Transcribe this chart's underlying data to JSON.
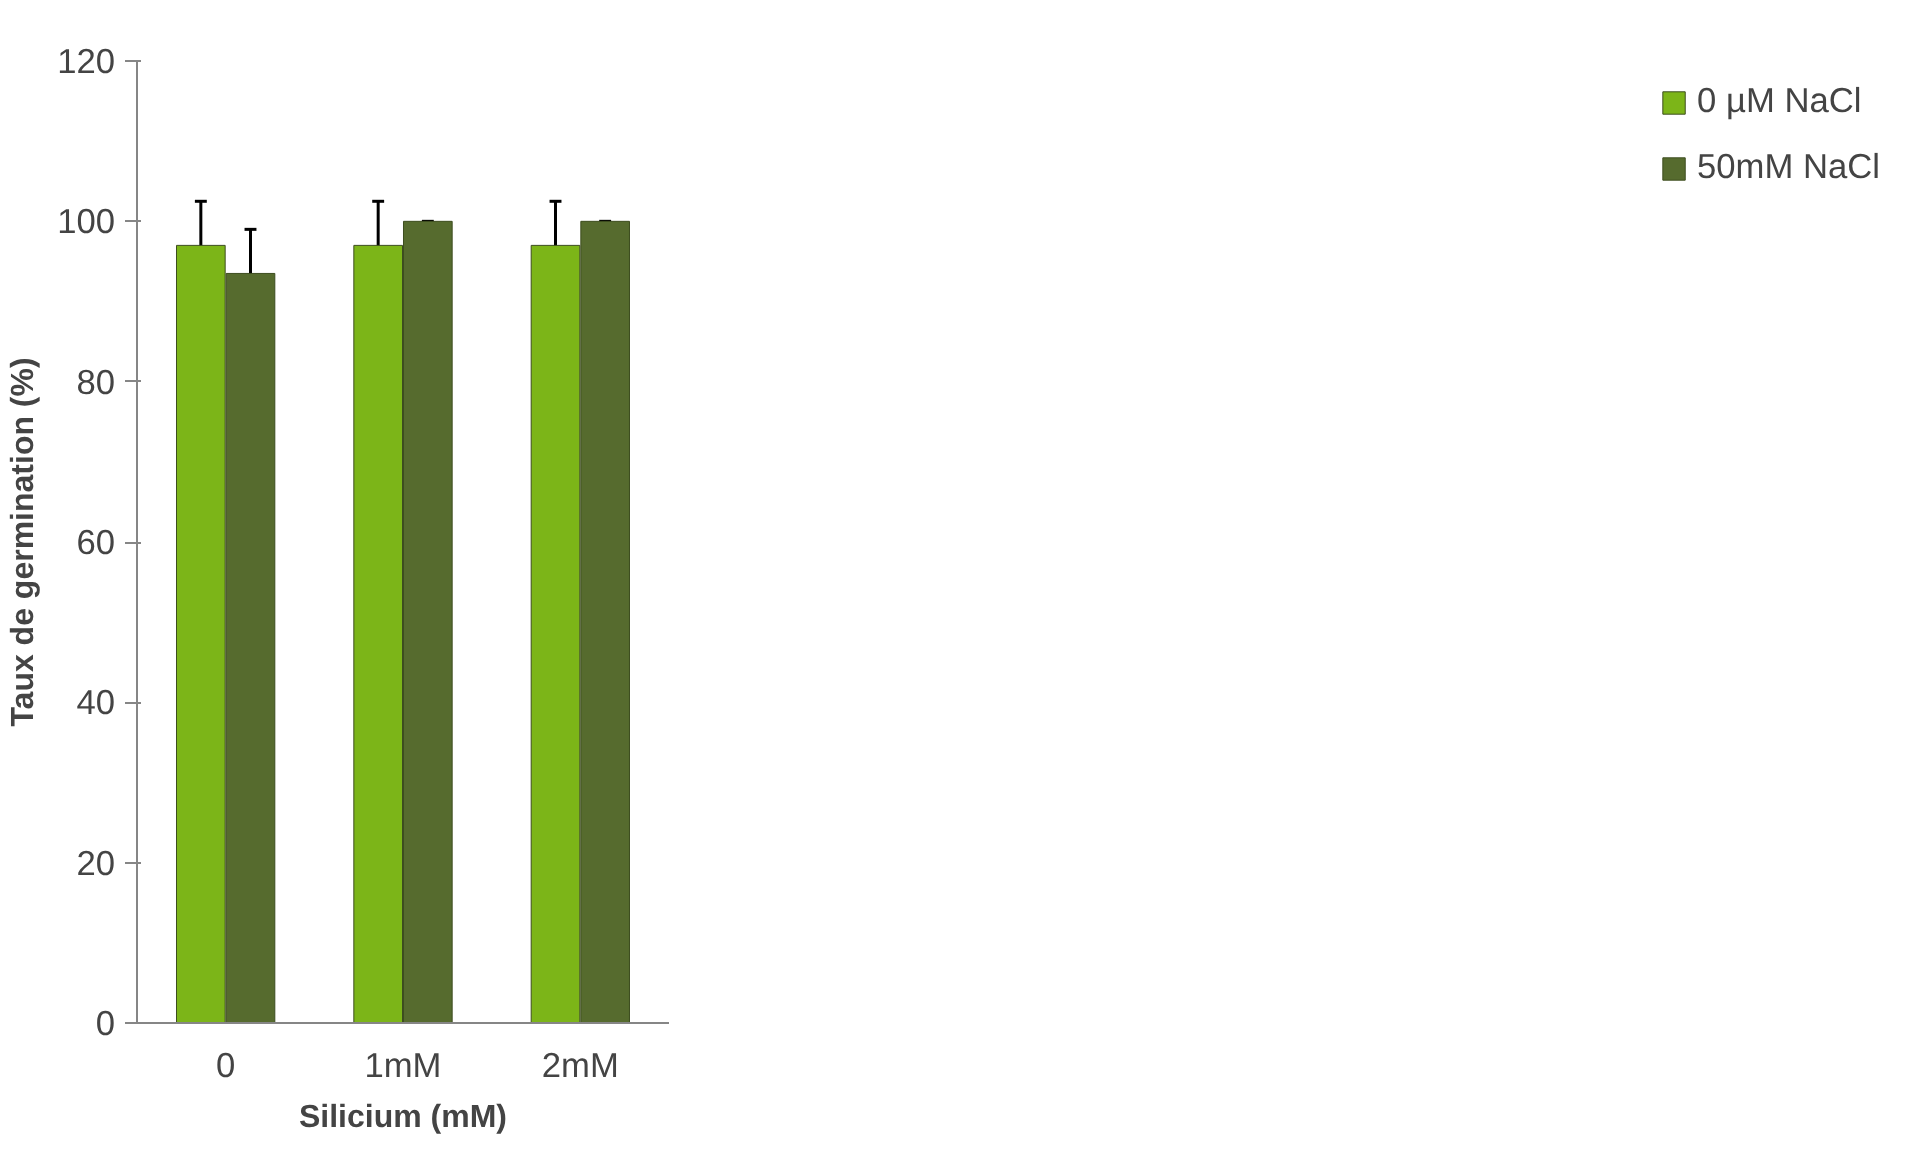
{
  "chart_data": {
    "type": "bar",
    "xlabel": "Silicium (mM)",
    "ylabel": "Taux de germination (%)",
    "categories": [
      "0",
      "1mM",
      "2mM"
    ],
    "series": [
      {
        "name": "0 µM NaCl",
        "color": "#7cb518",
        "values": [
          97,
          97,
          97
        ],
        "errors": [
          5.5,
          5.5,
          5.5
        ]
      },
      {
        "name": "50mM NaCl",
        "color": "#566b2e",
        "values": [
          93.5,
          100,
          100
        ],
        "errors": [
          5.5,
          0,
          0
        ]
      }
    ],
    "ylim": [
      0,
      120
    ],
    "yticks": [
      0,
      20,
      40,
      60,
      80,
      100,
      120
    ],
    "grid": false,
    "legend": "right"
  }
}
